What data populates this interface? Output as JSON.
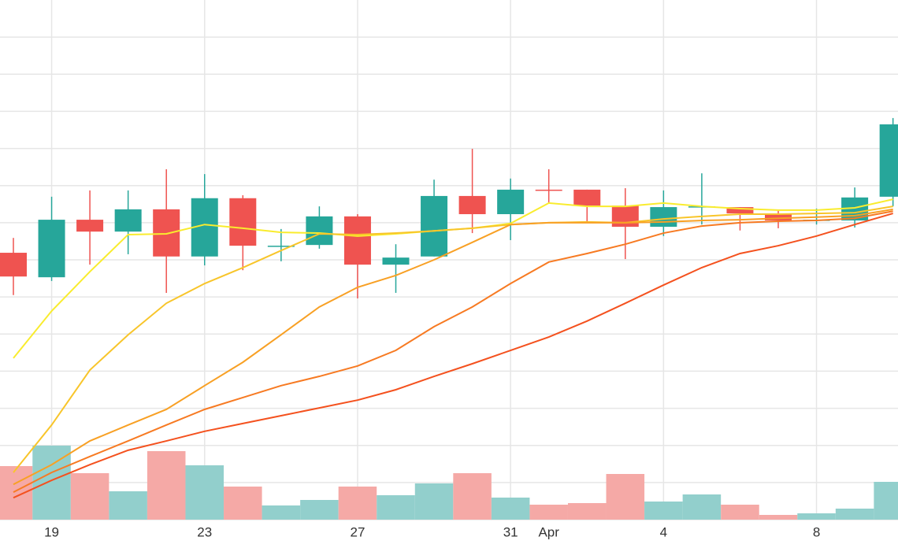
{
  "chart_data": {
    "type": "candlestick",
    "categories": [
      null,
      "19",
      null,
      null,
      null,
      "23",
      null,
      null,
      null,
      "27",
      null,
      null,
      null,
      "31",
      "Apr",
      null,
      null,
      "4",
      null,
      null,
      null,
      "8",
      null,
      null
    ],
    "open": [
      7.19,
      6.53,
      8.08,
      7.76,
      8.36,
      7.09,
      8.66,
      7.38,
      7.4,
      8.17,
      6.87,
      7.09,
      8.72,
      8.23,
      8.89,
      8.89,
      8.46,
      7.89,
      8.42,
      8.42,
      8.23,
      8.06,
      8.06,
      8.7
    ],
    "high": [
      7.59,
      8.7,
      8.87,
      8.87,
      9.44,
      9.31,
      8.74,
      7.83,
      8.44,
      8.23,
      7.42,
      9.16,
      9.99,
      9.19,
      9.44,
      8.89,
      8.93,
      8.87,
      9.33,
      8.42,
      8.32,
      8.38,
      8.95,
      10.82
    ],
    "low": [
      6.05,
      6.43,
      6.87,
      7.15,
      6.11,
      6.85,
      6.72,
      6.96,
      7.3,
      5.96,
      6.11,
      7.09,
      7.72,
      7.53,
      8.53,
      8.0,
      7.02,
      7.64,
      7.95,
      7.79,
      7.85,
      7.95,
      7.87,
      8.44
    ],
    "close": [
      6.55,
      8.08,
      7.76,
      8.36,
      7.09,
      8.66,
      7.38,
      7.38,
      8.17,
      6.87,
      7.06,
      8.72,
      8.23,
      8.89,
      8.88,
      8.46,
      7.89,
      8.42,
      8.44,
      8.25,
      8.06,
      8.08,
      8.68,
      10.65
    ],
    "volume": [
      68,
      94,
      59,
      36,
      87,
      69,
      42,
      18,
      25,
      42,
      31,
      46,
      59,
      28,
      19,
      21,
      58,
      23,
      32,
      19,
      6,
      8,
      14,
      48
    ],
    "up_color": "#26a69a",
    "down_color": "#ef5350",
    "volume_up_color": "#92cfcc",
    "volume_down_color": "#f5a9a6",
    "lines": [
      {
        "color": "#f9ec2e",
        "values": [
          4.35,
          5.62,
          6.68,
          7.68,
          7.7,
          7.95,
          7.85,
          7.74,
          7.72,
          7.64,
          7.7,
          7.78,
          7.85,
          7.98,
          8.53,
          8.44,
          8.44,
          8.53,
          8.44,
          8.38,
          8.34,
          8.34,
          8.4,
          8.63
        ]
      },
      {
        "color": "#f8c52a",
        "values": [
          1.27,
          2.55,
          4.03,
          4.98,
          5.83,
          6.36,
          6.79,
          7.25,
          7.7,
          7.68,
          7.72,
          7.78,
          7.85,
          7.95,
          8.0,
          8.02,
          8.0,
          8.1,
          8.17,
          8.23,
          8.23,
          8.25,
          8.27,
          8.44
        ]
      },
      {
        "color": "#f8a024",
        "values": [
          0.95,
          1.48,
          2.12,
          2.55,
          2.97,
          3.61,
          4.24,
          4.98,
          5.73,
          6.26,
          6.58,
          7.0,
          7.47,
          7.95,
          8.0,
          8.0,
          8.0,
          8.02,
          8.06,
          8.08,
          8.12,
          8.15,
          8.19,
          8.36
        ]
      },
      {
        "color": "#f77a22",
        "values": [
          0.74,
          1.27,
          1.7,
          2.12,
          2.55,
          2.97,
          3.29,
          3.61,
          3.86,
          4.14,
          4.56,
          5.2,
          5.73,
          6.36,
          6.94,
          7.17,
          7.42,
          7.72,
          7.91,
          8.0,
          8.04,
          8.06,
          8.12,
          8.31
        ]
      },
      {
        "color": "#f4511e",
        "values": [
          0.59,
          1.06,
          1.48,
          1.87,
          2.12,
          2.38,
          2.59,
          2.8,
          3.01,
          3.22,
          3.5,
          3.86,
          4.2,
          4.56,
          4.92,
          5.35,
          5.83,
          6.32,
          6.79,
          7.17,
          7.38,
          7.64,
          7.95,
          8.25
        ]
      }
    ],
    "ylim": [
      0,
      14
    ],
    "yticks": [
      0,
      1,
      2,
      3,
      4,
      5,
      6,
      7,
      8,
      9,
      10,
      11,
      12,
      13
    ],
    "volume_lim": [
      0,
      100
    ],
    "grid": true
  }
}
